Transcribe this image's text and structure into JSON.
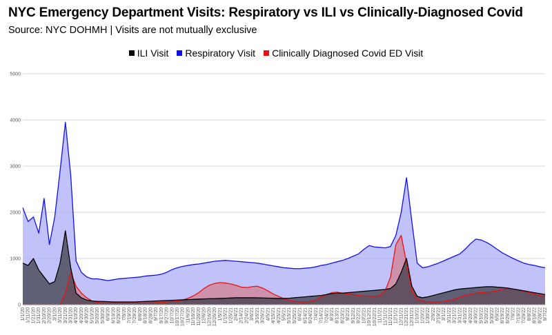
{
  "chart_data": {
    "type": "area",
    "title": "NYC Emergency Department Visits: Respiratory vs ILI vs Clinically-Diagnosed Covid",
    "subtitle": "Source: NYC DOHMH | Visits are not mutually exclusive",
    "xlabel": "",
    "ylabel": "",
    "ylim": [
      0,
      5000
    ],
    "yticks": [
      0,
      1000,
      2000,
      3000,
      4000,
      5000
    ],
    "grid": true,
    "legend_position": "top-center",
    "x_tick_labels": [
      "1/1/20",
      "1/11/20",
      "1/21/20",
      "1/31/20",
      "2/10/20",
      "2/20/20",
      "3/1/20",
      "3/11/20",
      "3/21/20",
      "3/31/20",
      "4/10/20",
      "4/20/20",
      "4/30/20",
      "5/10/20",
      "5/20/20",
      "5/30/20",
      "6/9/20",
      "6/19/20",
      "6/29/20",
      "7/9/20",
      "7/19/20",
      "7/29/20",
      "8/8/20",
      "8/18/20",
      "8/28/20",
      "9/7/20",
      "9/17/20",
      "9/27/20",
      "10/7/20",
      "10/17/20",
      "10/27/20",
      "11/6/20",
      "11/16/20",
      "11/26/20",
      "12/6/20",
      "12/16/20",
      "12/26/20",
      "1/5/21",
      "1/15/21",
      "1/25/21",
      "2/4/21",
      "2/14/21",
      "2/24/21",
      "3/6/21",
      "3/16/21",
      "3/26/21",
      "4/5/21",
      "4/15/21",
      "4/25/21",
      "5/5/21",
      "5/15/21",
      "5/25/21",
      "6/4/21",
      "6/14/21",
      "6/24/21",
      "7/4/21",
      "7/14/21",
      "7/24/21",
      "8/3/21",
      "8/13/21",
      "8/23/21",
      "9/2/21",
      "9/12/21",
      "9/22/21",
      "10/2/21",
      "10/12/21",
      "10/22/21",
      "11/1/21",
      "11/11/21",
      "11/21/21",
      "12/1/21",
      "12/11/21",
      "12/21/21",
      "12/31/21",
      "1/10/22",
      "1/20/22",
      "1/30/22",
      "2/9/22",
      "2/19/22",
      "3/1/22",
      "3/11/22",
      "3/21/22",
      "3/31/22",
      "4/10/22",
      "4/20/22",
      "4/30/22",
      "5/10/22",
      "5/20/22",
      "5/30/22",
      "6/9/22",
      "6/19/22",
      "6/29/22",
      "7/9/22",
      "7/19/22",
      "7/29/22",
      "8/8/22",
      "8/18/22",
      "8/28/22",
      "9/7/22"
    ],
    "series": [
      {
        "name": "Respiratory Visit",
        "color": "#1010ee",
        "fill": "#aeaefa",
        "values": [
          2100,
          1800,
          1900,
          1550,
          2300,
          1300,
          1900,
          2900,
          3950,
          2800,
          950,
          700,
          600,
          560,
          560,
          540,
          520,
          540,
          560,
          570,
          580,
          590,
          600,
          620,
          630,
          640,
          660,
          700,
          760,
          800,
          830,
          850,
          870,
          880,
          900,
          920,
          940,
          950,
          960,
          950,
          940,
          930,
          920,
          910,
          900,
          880,
          860,
          840,
          820,
          800,
          790,
          780,
          780,
          790,
          800,
          820,
          850,
          870,
          900,
          930,
          960,
          1000,
          1050,
          1100,
          1200,
          1280,
          1250,
          1240,
          1230,
          1260,
          1500,
          2000,
          2750,
          1800,
          900,
          800,
          820,
          860,
          900,
          950,
          1000,
          1050,
          1100,
          1200,
          1320,
          1420,
          1400,
          1350,
          1280,
          1200,
          1120,
          1060,
          1000,
          950,
          900,
          870,
          850,
          820,
          800
        ]
      },
      {
        "name": "ILI Visit",
        "color": "#000000",
        "fill": "#3d3d4a",
        "values": [
          900,
          850,
          1000,
          750,
          600,
          450,
          500,
          900,
          1600,
          800,
          250,
          150,
          100,
          80,
          70,
          70,
          65,
          60,
          60,
          60,
          60,
          60,
          65,
          70,
          75,
          80,
          85,
          90,
          95,
          100,
          105,
          110,
          115,
          120,
          125,
          130,
          130,
          135,
          140,
          145,
          150,
          150,
          150,
          150,
          148,
          145,
          142,
          138,
          135,
          135,
          140,
          150,
          160,
          170,
          180,
          190,
          200,
          220,
          240,
          250,
          250,
          260,
          270,
          280,
          290,
          300,
          310,
          320,
          330,
          350,
          450,
          700,
          1000,
          400,
          180,
          150,
          170,
          200,
          230,
          260,
          290,
          320,
          340,
          350,
          360,
          370,
          380,
          390,
          390,
          380,
          370,
          360,
          340,
          320,
          300,
          280,
          260,
          240,
          220
        ]
      },
      {
        "name": "Clinically Diagnosed Covid ED Visit",
        "color": "#ee1010",
        "fill": "#d08090",
        "values": [
          0,
          0,
          0,
          0,
          0,
          0,
          0,
          0,
          250,
          700,
          400,
          250,
          150,
          80,
          50,
          40,
          40,
          40,
          40,
          40,
          40,
          40,
          40,
          40,
          40,
          45,
          50,
          60,
          70,
          80,
          100,
          140,
          190,
          260,
          350,
          420,
          460,
          480,
          470,
          450,
          420,
          380,
          370,
          390,
          400,
          360,
          300,
          230,
          180,
          130,
          90,
          70,
          60,
          60,
          70,
          100,
          170,
          220,
          260,
          270,
          250,
          230,
          220,
          200,
          190,
          180,
          180,
          200,
          300,
          600,
          1300,
          1500,
          900,
          300,
          120,
          80,
          60,
          60,
          60,
          70,
          90,
          120,
          160,
          200,
          230,
          250,
          260,
          270,
          280,
          300,
          330,
          350,
          340,
          320,
          290,
          260,
          230,
          200,
          180
        ]
      }
    ]
  },
  "legend": {
    "items": [
      {
        "label": "ILI Visit",
        "color": "#000000"
      },
      {
        "label": "Respiratory Visit",
        "color": "#1010ee"
      },
      {
        "label": "Clinically Diagnosed Covid ED Visit",
        "color": "#ee1010"
      }
    ]
  }
}
